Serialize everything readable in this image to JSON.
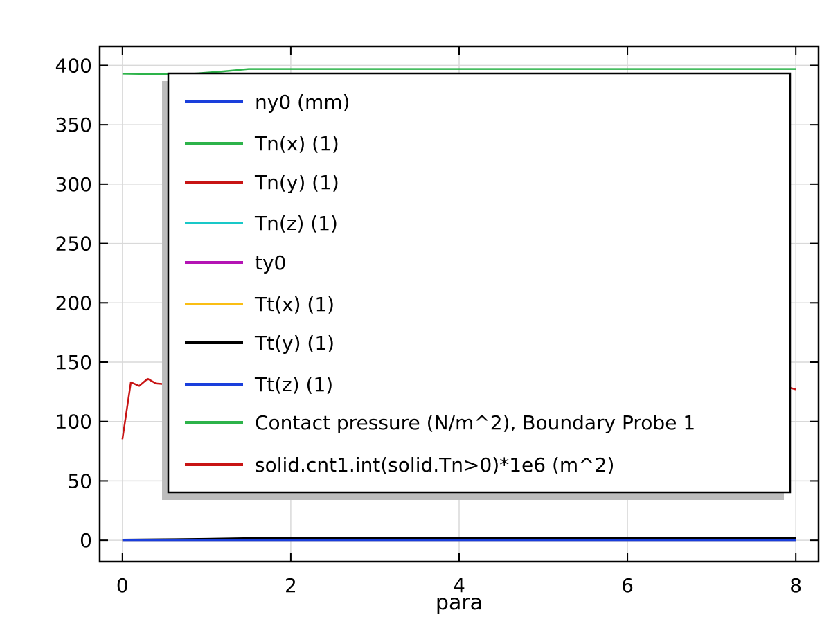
{
  "chart_data": {
    "type": "line",
    "xlabel": "para",
    "ylabel": "",
    "xlim": [
      -0.27,
      8.27
    ],
    "ylim": [
      -18,
      416
    ],
    "xticks": [
      0,
      2,
      4,
      6,
      8
    ],
    "yticks": [
      0,
      50,
      100,
      150,
      200,
      250,
      300,
      350,
      400
    ],
    "xtick_labels": [
      "0",
      "2",
      "4",
      "6",
      "8"
    ],
    "ytick_labels": [
      "0",
      "50",
      "100",
      "150",
      "200",
      "250",
      "300",
      "350",
      "400"
    ],
    "grid": true,
    "legend_position": "upper-center",
    "series": [
      {
        "name": "ny0 (mm)",
        "color": "#1a3fdc",
        "x": [
          0,
          8
        ],
        "y": [
          0,
          0
        ]
      },
      {
        "name": "Tn(x) (1)",
        "color": "#2db34a",
        "x": [
          0,
          8
        ],
        "y": [
          0,
          0
        ]
      },
      {
        "name": "Tn(y) (1)",
        "color": "#c81414",
        "x": [
          0,
          8
        ],
        "y": [
          0,
          0
        ]
      },
      {
        "name": "Tn(z) (1)",
        "color": "#19c8c8",
        "x": [
          0,
          8
        ],
        "y": [
          0,
          0
        ]
      },
      {
        "name": "ty0",
        "color": "#b414b4",
        "x": [
          0,
          8
        ],
        "y": [
          0,
          0
        ]
      },
      {
        "name": "Tt(x) (1)",
        "color": "#fabe14",
        "x": [
          0,
          8
        ],
        "y": [
          0,
          0
        ]
      },
      {
        "name": "Tt(y) (1)",
        "color": "#000000",
        "x": [
          0,
          0.5,
          1.0,
          1.5,
          2,
          3,
          4,
          5,
          6,
          7,
          8
        ],
        "y": [
          0.5,
          0.8,
          1.2,
          1.8,
          2,
          2,
          2,
          2,
          2,
          2,
          2
        ]
      },
      {
        "name": "Tt(z) (1)",
        "color": "#1a3fdc",
        "x": [
          0,
          8
        ],
        "y": [
          0,
          0
        ]
      },
      {
        "name": "Contact pressure (N/m^2), Boundary Probe 1",
        "color": "#2db34a",
        "x": [
          0,
          0.4,
          0.8,
          1.2,
          1.5,
          2,
          3,
          4,
          5,
          6,
          7,
          8
        ],
        "y": [
          393,
          392.6,
          392.8,
          395,
          397,
          397,
          397,
          397,
          397,
          397,
          397,
          397
        ]
      },
      {
        "name": "solid.cnt1.int(solid.Tn>0)*1e6 (m^2)",
        "color": "#c81414",
        "x": [
          0,
          0.1,
          0.2,
          0.3,
          0.4,
          0.5,
          0.6,
          7.9,
          8
        ],
        "y": [
          85,
          133,
          130,
          136,
          132,
          131.5,
          130.5,
          129,
          127
        ]
      }
    ]
  }
}
